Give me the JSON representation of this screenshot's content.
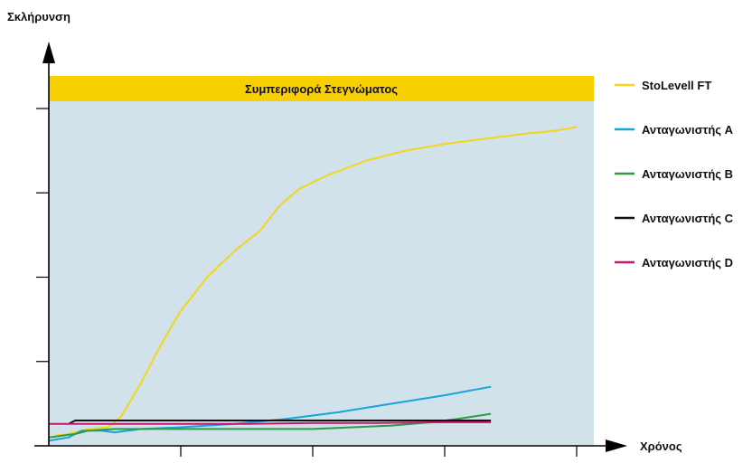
{
  "chart_data": {
    "type": "line",
    "title": "Συμπεριφορά Στεγνώματος",
    "xlabel": "Χρόνος",
    "ylabel": "Σκλήρυνση",
    "xlim": [
      0,
      4
    ],
    "ylim": [
      0,
      4
    ],
    "x_ticks": [
      0,
      1,
      2,
      3,
      4
    ],
    "y_ticks": [
      0,
      1,
      2,
      3,
      4
    ],
    "x_tick_labels": [],
    "y_tick_labels": [],
    "grid": false,
    "legend_position": "right",
    "series": [
      {
        "name": "StoLevell FT",
        "color": "#f5d31e",
        "points": [
          [
            0.05,
            0.12
          ],
          [
            0.15,
            0.14
          ],
          [
            0.3,
            0.2
          ],
          [
            0.45,
            0.22
          ],
          [
            0.55,
            0.35
          ],
          [
            0.7,
            0.75
          ],
          [
            0.85,
            1.2
          ],
          [
            1.0,
            1.6
          ],
          [
            1.2,
            2.0
          ],
          [
            1.4,
            2.3
          ],
          [
            1.6,
            2.55
          ],
          [
            1.75,
            2.85
          ],
          [
            1.9,
            3.05
          ],
          [
            2.1,
            3.2
          ],
          [
            2.4,
            3.38
          ],
          [
            2.7,
            3.5
          ],
          [
            3.0,
            3.58
          ],
          [
            3.3,
            3.64
          ],
          [
            3.6,
            3.7
          ],
          [
            3.85,
            3.74
          ],
          [
            4.0,
            3.78
          ]
        ]
      },
      {
        "name": "Ανταγωνιστής A",
        "color": "#1aa3d9",
        "points": [
          [
            0.0,
            0.06
          ],
          [
            0.15,
            0.1
          ],
          [
            0.25,
            0.18
          ],
          [
            0.4,
            0.18
          ],
          [
            0.5,
            0.16
          ],
          [
            0.7,
            0.2
          ],
          [
            1.0,
            0.22
          ],
          [
            1.4,
            0.26
          ],
          [
            1.8,
            0.32
          ],
          [
            2.2,
            0.4
          ],
          [
            2.6,
            0.5
          ],
          [
            3.0,
            0.6
          ],
          [
            3.35,
            0.7
          ]
        ]
      },
      {
        "name": "Ανταγωνιστής B",
        "color": "#2c9d45",
        "points": [
          [
            0.0,
            0.1
          ],
          [
            0.1,
            0.12
          ],
          [
            0.2,
            0.14
          ],
          [
            0.3,
            0.18
          ],
          [
            0.5,
            0.2
          ],
          [
            1.0,
            0.2
          ],
          [
            1.5,
            0.2
          ],
          [
            2.0,
            0.2
          ],
          [
            2.3,
            0.22
          ],
          [
            2.6,
            0.24
          ],
          [
            2.9,
            0.28
          ],
          [
            3.1,
            0.32
          ],
          [
            3.35,
            0.38
          ]
        ]
      },
      {
        "name": "Ανταγωνιστής C",
        "color": "#111111",
        "points": [
          [
            0.15,
            0.26
          ],
          [
            0.2,
            0.3
          ],
          [
            0.5,
            0.3
          ],
          [
            1.0,
            0.3
          ],
          [
            1.5,
            0.3
          ],
          [
            2.0,
            0.3
          ],
          [
            2.5,
            0.3
          ],
          [
            3.0,
            0.3
          ],
          [
            3.35,
            0.3
          ]
        ]
      },
      {
        "name": "Ανταγωνιστής D",
        "color": "#c8166f",
        "points": [
          [
            0.0,
            0.26
          ],
          [
            0.5,
            0.26
          ],
          [
            1.0,
            0.26
          ],
          [
            1.5,
            0.26
          ],
          [
            2.0,
            0.27
          ],
          [
            2.5,
            0.27
          ],
          [
            3.0,
            0.28
          ],
          [
            3.35,
            0.28
          ]
        ]
      }
    ]
  }
}
